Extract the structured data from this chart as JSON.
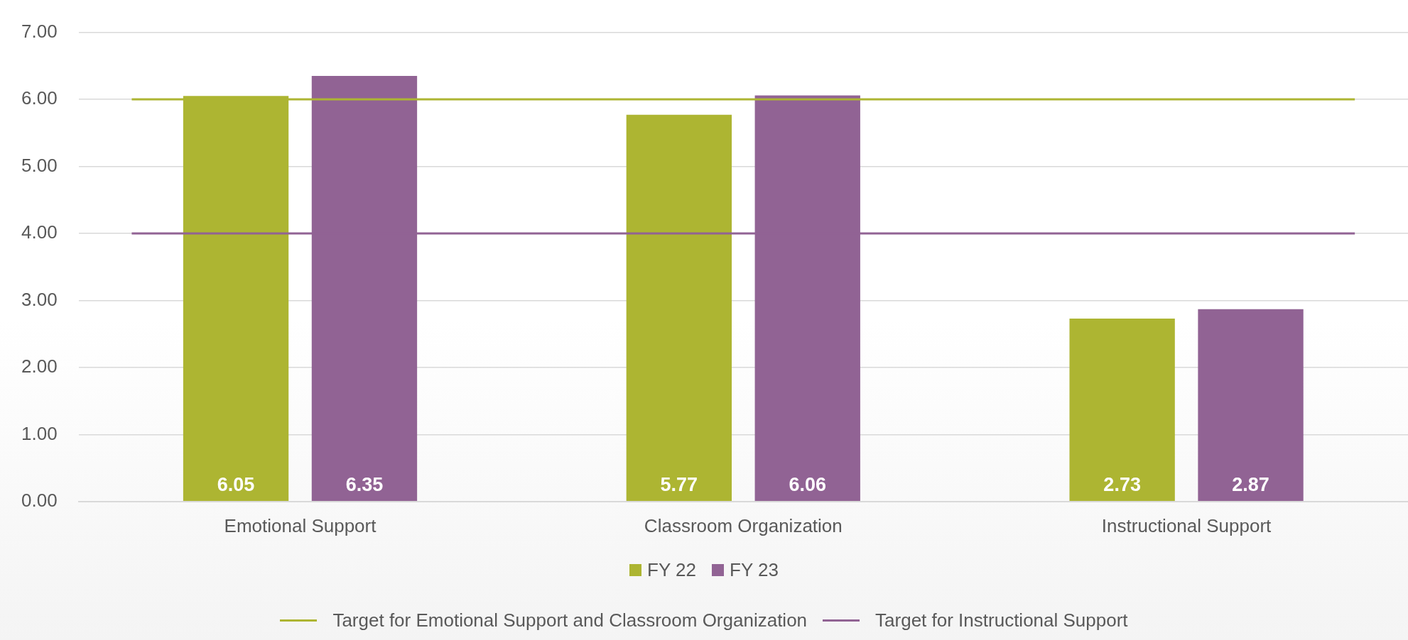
{
  "chart_data": {
    "type": "bar",
    "categories": [
      "Emotional Support",
      "Classroom Organization",
      "Instructional Support"
    ],
    "series": [
      {
        "name": "FY 22",
        "color": "#adb532",
        "values": [
          6.05,
          5.77,
          2.73
        ]
      },
      {
        "name": "FY 23",
        "color": "#916394",
        "values": [
          6.35,
          6.06,
          2.87
        ]
      }
    ],
    "ylim": [
      0,
      7
    ],
    "yticks": [
      {
        "value": 0,
        "label": "0.00"
      },
      {
        "value": 1,
        "label": "1.00"
      },
      {
        "value": 2,
        "label": "2.00"
      },
      {
        "value": 3,
        "label": "3.00"
      },
      {
        "value": 4,
        "label": "4.00"
      },
      {
        "value": 5,
        "label": "5.00"
      },
      {
        "value": 6,
        "label": "6.00"
      },
      {
        "value": 7,
        "label": "7.00"
      }
    ],
    "ref_lines": [
      {
        "axis": "y",
        "value": 6,
        "label": "Target for Emotional Support and Classroom Organization",
        "color": "#adb532"
      },
      {
        "axis": "y",
        "value": 4,
        "label": "Target for Instructional Support",
        "color": "#916394"
      }
    ],
    "data_labels": true,
    "grid": "y",
    "legend": "bottom"
  }
}
